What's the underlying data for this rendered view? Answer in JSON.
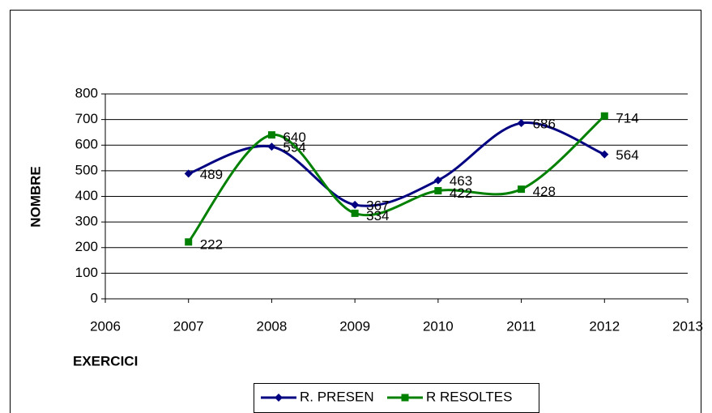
{
  "chart_data": {
    "type": "line",
    "x": [
      2007,
      2008,
      2009,
      2010,
      2011,
      2012
    ],
    "series": [
      {
        "name": "R. PRESEN",
        "color": "#000080",
        "values": [
          489,
          594,
          367,
          463,
          686,
          564
        ]
      },
      {
        "name": "R RESOLTES",
        "color": "#008000",
        "values": [
          222,
          640,
          334,
          422,
          428,
          714
        ]
      }
    ],
    "xlim": [
      2006,
      2013
    ],
    "xticks": [
      2006,
      2007,
      2008,
      2009,
      2010,
      2011,
      2012,
      2013
    ],
    "ylim": [
      0,
      800
    ],
    "yticks": [
      0,
      100,
      200,
      300,
      400,
      500,
      600,
      700,
      800
    ],
    "xlabel": "EXERCICI",
    "ylabel": "NOMBRE",
    "grid": true,
    "legend": "bottom"
  }
}
